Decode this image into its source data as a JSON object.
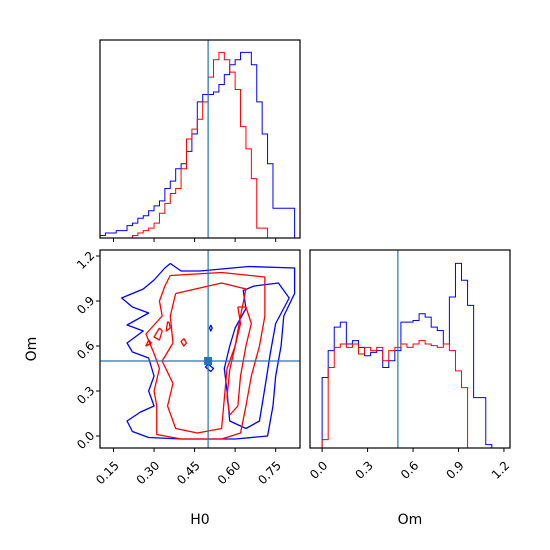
{
  "chart_data": [
    {
      "type": "histogram",
      "panel": "H0 marginal",
      "xlim": [
        0.1,
        0.84
      ],
      "truth": 0.5,
      "bins": [
        0.1,
        0.12,
        0.14,
        0.16,
        0.18,
        0.2,
        0.22,
        0.24,
        0.26,
        0.28,
        0.3,
        0.32,
        0.34,
        0.36,
        0.38,
        0.4,
        0.42,
        0.44,
        0.46,
        0.48,
        0.5,
        0.52,
        0.54,
        0.56,
        0.58,
        0.6,
        0.62,
        0.64,
        0.66,
        0.68,
        0.7,
        0.72,
        0.74,
        0.76,
        0.78,
        0.8,
        0.82,
        0.84
      ],
      "series": [
        {
          "color": "#0000ff",
          "values": [
            1,
            2,
            2,
            3,
            3,
            5,
            6,
            8,
            9,
            11,
            13,
            15,
            20,
            23,
            28,
            30,
            35,
            42,
            55,
            58,
            58,
            59,
            62,
            66,
            70,
            72,
            75,
            75,
            70,
            55,
            42,
            30,
            12,
            12,
            12,
            12,
            0
          ]
        },
        {
          "color": "#ff0000",
          "values": [
            0,
            0,
            0,
            0,
            0,
            0,
            1,
            2,
            3,
            4,
            6,
            10,
            14,
            18,
            20,
            28,
            40,
            44,
            48,
            55,
            65,
            72,
            75,
            72,
            67,
            60,
            45,
            36,
            24,
            4,
            4,
            0,
            0,
            0,
            0,
            0,
            0
          ]
        }
      ]
    },
    {
      "type": "contour",
      "panel": "H0 vs Om",
      "xlabel": "H0",
      "ylabel": "Om",
      "xlim": [
        0.1,
        0.84
      ],
      "ylim": [
        -0.08,
        1.24
      ],
      "xticks": [
        "0.15",
        "0.30",
        "0.45",
        "0.60",
        "0.75"
      ],
      "yticks": [
        "0.0",
        "0.3",
        "0.6",
        "0.9",
        "1.2"
      ],
      "truth": {
        "x": 0.5,
        "y": 0.5
      },
      "series": [
        {
          "color": "#0000ff",
          "contours": [
            [
              [
                0.47,
                1.1
              ],
              [
                0.65,
                1.13
              ],
              [
                0.82,
                1.12
              ],
              [
                0.82,
                0.95
              ],
              [
                0.78,
                0.8
              ],
              [
                0.77,
                0.6
              ],
              [
                0.75,
                0.4
              ],
              [
                0.74,
                0.2
              ],
              [
                0.72,
                0.0
              ],
              [
                0.6,
                -0.02
              ],
              [
                0.4,
                -0.02
              ],
              [
                0.28,
                -0.01
              ],
              [
                0.22,
                0.03
              ],
              [
                0.2,
                0.1
              ],
              [
                0.25,
                0.16
              ],
              [
                0.3,
                0.2
              ],
              [
                0.28,
                0.3
              ],
              [
                0.3,
                0.4
              ],
              [
                0.28,
                0.52
              ],
              [
                0.22,
                0.56
              ],
              [
                0.2,
                0.62
              ],
              [
                0.26,
                0.7
              ],
              [
                0.2,
                0.74
              ],
              [
                0.28,
                0.82
              ],
              [
                0.22,
                0.86
              ],
              [
                0.18,
                0.92
              ],
              [
                0.26,
                0.98
              ],
              [
                0.3,
                1.04
              ],
              [
                0.34,
                1.12
              ],
              [
                0.36,
                1.15
              ],
              [
                0.4,
                1.1
              ],
              [
                0.47,
                1.1
              ]
            ],
            [
              [
                0.67,
                1.0
              ],
              [
                0.76,
                1.02
              ],
              [
                0.8,
                0.92
              ],
              [
                0.75,
                0.75
              ],
              [
                0.73,
                0.55
              ],
              [
                0.71,
                0.32
              ],
              [
                0.69,
                0.1
              ],
              [
                0.64,
                0.05
              ],
              [
                0.58,
                0.1
              ],
              [
                0.57,
                0.3
              ],
              [
                0.56,
                0.45
              ],
              [
                0.58,
                0.6
              ],
              [
                0.6,
                0.72
              ],
              [
                0.64,
                0.85
              ],
              [
                0.63,
                0.97
              ],
              [
                0.67,
                1.0
              ]
            ],
            [
              [
                0.51,
                0.74
              ],
              [
                0.515,
                0.72
              ],
              [
                0.51,
                0.7
              ],
              [
                0.505,
                0.72
              ],
              [
                0.51,
                0.74
              ]
            ],
            [
              [
                0.5,
                0.48
              ],
              [
                0.52,
                0.45
              ],
              [
                0.51,
                0.43
              ],
              [
                0.49,
                0.46
              ],
              [
                0.5,
                0.48
              ]
            ]
          ]
        },
        {
          "color": "#ff0000",
          "contours": [
            [
              [
                0.36,
                1.07
              ],
              [
                0.55,
                1.09
              ],
              [
                0.71,
                1.06
              ],
              [
                0.71,
                0.8
              ],
              [
                0.69,
                0.6
              ],
              [
                0.66,
                0.4
              ],
              [
                0.64,
                0.2
              ],
              [
                0.62,
                0.02
              ],
              [
                0.55,
                -0.02
              ],
              [
                0.4,
                -0.02
              ],
              [
                0.31,
                0.01
              ],
              [
                0.31,
                0.2
              ],
              [
                0.3,
                0.3
              ],
              [
                0.32,
                0.45
              ],
              [
                0.3,
                0.55
              ],
              [
                0.27,
                0.68
              ],
              [
                0.33,
                0.8
              ],
              [
                0.32,
                0.9
              ],
              [
                0.34,
                1.0
              ],
              [
                0.36,
                1.07
              ]
            ],
            [
              [
                0.38,
                0.95
              ],
              [
                0.55,
                1.02
              ],
              [
                0.64,
                0.98
              ],
              [
                0.62,
                0.8
              ],
              [
                0.6,
                0.6
              ],
              [
                0.57,
                0.45
              ],
              [
                0.56,
                0.25
              ],
              [
                0.55,
                0.05
              ],
              [
                0.46,
                0.02
              ],
              [
                0.38,
                0.05
              ],
              [
                0.35,
                0.2
              ],
              [
                0.37,
                0.35
              ],
              [
                0.33,
                0.5
              ],
              [
                0.37,
                0.62
              ],
              [
                0.36,
                0.8
              ],
              [
                0.38,
                0.95
              ]
            ],
            [
              [
                0.61,
                0.86
              ],
              [
                0.62,
                0.75
              ],
              [
                0.6,
                0.6
              ],
              [
                0.58,
                0.44
              ],
              [
                0.57,
                0.26
              ],
              [
                0.58,
                0.14
              ],
              [
                0.61,
                0.2
              ],
              [
                0.62,
                0.4
              ],
              [
                0.64,
                0.6
              ],
              [
                0.66,
                0.75
              ],
              [
                0.64,
                0.86
              ],
              [
                0.61,
                0.86
              ]
            ],
            [
              [
                0.32,
                0.72
              ],
              [
                0.3,
                0.66
              ],
              [
                0.32,
                0.64
              ],
              [
                0.33,
                0.7
              ],
              [
                0.32,
                0.72
              ]
            ],
            [
              [
                0.355,
                0.76
              ],
              [
                0.36,
                0.72
              ],
              [
                0.345,
                0.7
              ],
              [
                0.35,
                0.76
              ],
              [
                0.355,
                0.76
              ]
            ],
            [
              [
                0.41,
                0.65
              ],
              [
                0.42,
                0.62
              ],
              [
                0.41,
                0.6
              ],
              [
                0.4,
                0.63
              ],
              [
                0.41,
                0.65
              ]
            ],
            [
              [
                0.28,
                0.64
              ],
              [
                0.29,
                0.62
              ],
              [
                0.27,
                0.6
              ],
              [
                0.28,
                0.64
              ]
            ]
          ]
        }
      ]
    },
    {
      "type": "histogram",
      "panel": "Om marginal",
      "xlabel": "Om",
      "xlim": [
        -0.08,
        1.24
      ],
      "xticks": [
        "0.0",
        "0.3",
        "0.6",
        "0.9",
        "1.2"
      ],
      "truth": 0.5,
      "bins": [
        0.0,
        0.04,
        0.08,
        0.12,
        0.16,
        0.2,
        0.24,
        0.28,
        0.32,
        0.36,
        0.4,
        0.44,
        0.48,
        0.52,
        0.56,
        0.6,
        0.64,
        0.68,
        0.72,
        0.76,
        0.8,
        0.84,
        0.88,
        0.92,
        0.96,
        1.0,
        1.04,
        1.08,
        1.12
      ],
      "series": [
        {
          "color": "#0000ff",
          "values": [
            42,
            58,
            72,
            75,
            62,
            64,
            60,
            55,
            57,
            58,
            48,
            52,
            58,
            75,
            75,
            76,
            80,
            78,
            72,
            70,
            62,
            90,
            110,
            100,
            85,
            30,
            30,
            2
          ]
        },
        {
          "color": "#ff0000",
          "values": [
            5,
            48,
            60,
            62,
            60,
            62,
            56,
            60,
            58,
            60,
            52,
            58,
            60,
            62,
            60,
            62,
            64,
            62,
            61,
            60,
            62,
            58,
            46,
            36,
            0,
            0,
            0,
            0
          ]
        }
      ]
    }
  ]
}
